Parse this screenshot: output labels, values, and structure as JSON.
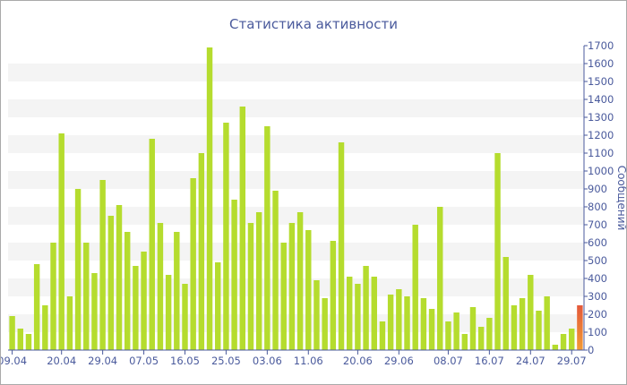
{
  "chart_data": {
    "type": "bar",
    "title": "Статистика активности",
    "ylabel": "Сообщений",
    "ylim": [
      0,
      1700
    ],
    "yticks": [
      0,
      100,
      200,
      300,
      400,
      500,
      600,
      700,
      800,
      900,
      1000,
      1100,
      1200,
      1300,
      1400,
      1500,
      1600,
      1700
    ],
    "y_axis_side": "right",
    "grid": "alternating horizontal bands",
    "xtick_labels": [
      "09.04",
      "20.04",
      "29.04",
      "07.05",
      "16.05",
      "25.05",
      "03.06",
      "11.06",
      "20.06",
      "29.06",
      "08.07",
      "16.07",
      "24.07",
      "29.07"
    ],
    "xtick_positions": [
      0,
      6,
      11,
      16,
      21,
      26,
      31,
      36,
      42,
      47,
      53,
      58,
      63,
      68
    ],
    "values": [
      190,
      120,
      90,
      480,
      250,
      600,
      1210,
      300,
      900,
      600,
      430,
      950,
      750,
      810,
      660,
      470,
      550,
      1180,
      710,
      420,
      660,
      370,
      960,
      1100,
      1690,
      490,
      1270,
      840,
      1360,
      710,
      770,
      1250,
      890,
      600,
      710,
      770,
      670,
      390,
      290,
      610,
      1160,
      410,
      370,
      470,
      410,
      160,
      310,
      340,
      300,
      700,
      290,
      230,
      800,
      160,
      210,
      90,
      240,
      130,
      180,
      1100,
      520,
      250,
      290,
      420,
      220,
      300,
      30,
      90,
      120,
      250
    ],
    "highlight_index": 69,
    "colors": {
      "bar": "#b5dc2e",
      "highlight_top": "#e4593a",
      "highlight_bottom": "#f29b34",
      "band": "#f4f4f4",
      "text": "#4a5a9c",
      "axis": "#4a5a9c"
    }
  }
}
